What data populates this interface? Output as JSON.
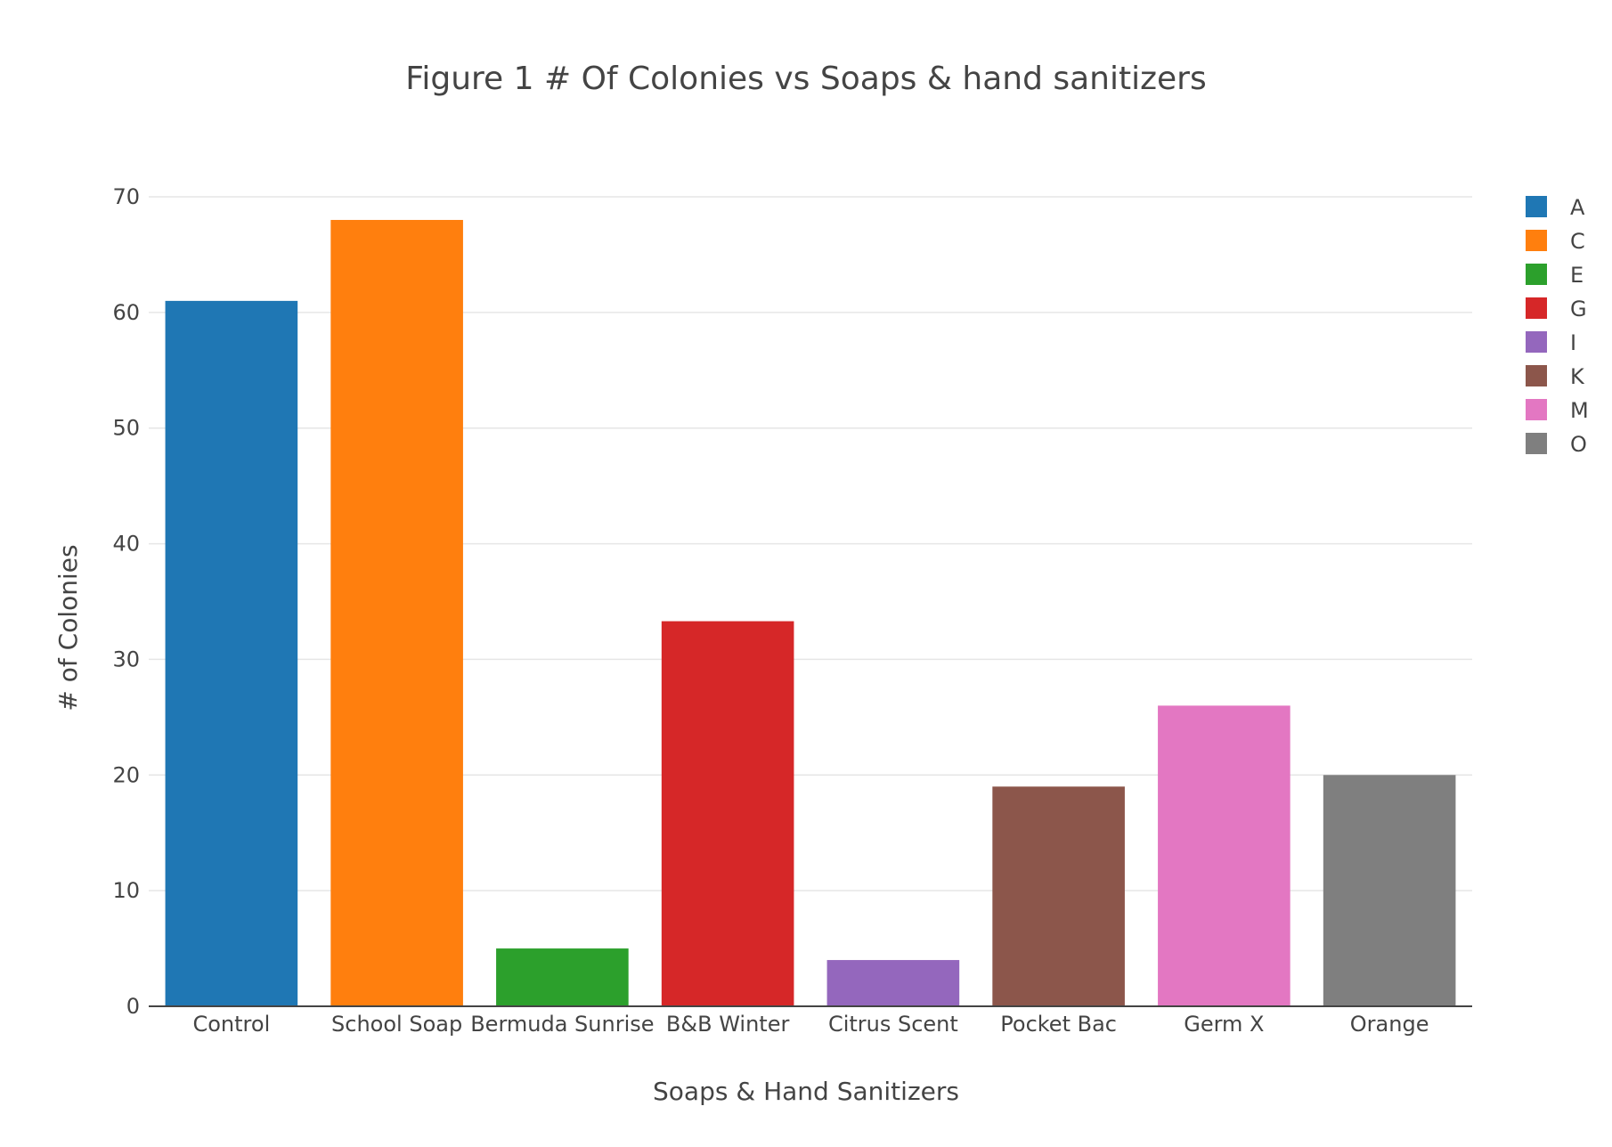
{
  "chart_data": {
    "type": "bar",
    "title": "Figure 1 # Of Colonies vs Soaps & hand sanitizers",
    "xlabel": "Soaps & Hand Sanitizers",
    "ylabel": "# of Colonies",
    "ylim": [
      0,
      70
    ],
    "yticks": [
      0,
      10,
      20,
      30,
      40,
      50,
      60,
      70
    ],
    "grid": true,
    "legend_position": "top-right",
    "categories": [
      "Control",
      "School Soap",
      "Bermuda Sunrise",
      "B&B Winter",
      "Citrus Scent",
      "Pocket Bac",
      "Germ X",
      "Orange"
    ],
    "series": [
      {
        "name": "A",
        "category": "Control",
        "value": 61,
        "color": "#1f77b4"
      },
      {
        "name": "C",
        "category": "School Soap",
        "value": 68,
        "color": "#ff7f0e"
      },
      {
        "name": "E",
        "category": "Bermuda Sunrise",
        "value": 5,
        "color": "#2ca02c"
      },
      {
        "name": "G",
        "category": "B&B Winter",
        "value": 33.3,
        "color": "#d62728"
      },
      {
        "name": "I",
        "category": "Citrus Scent",
        "value": 4,
        "color": "#9467bd"
      },
      {
        "name": "K",
        "category": "Pocket Bac",
        "value": 19,
        "color": "#8c564b"
      },
      {
        "name": "M",
        "category": "Germ X",
        "value": 26,
        "color": "#e377c2"
      },
      {
        "name": "O",
        "category": "Orange",
        "value": 20,
        "color": "#7f7f7f"
      }
    ]
  }
}
